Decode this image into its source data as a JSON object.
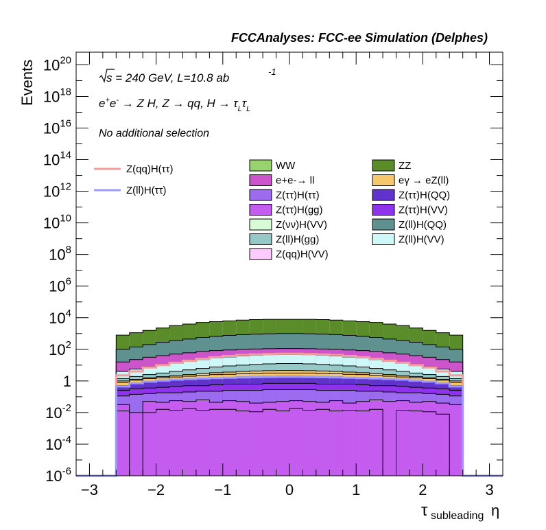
{
  "chart_data": {
    "type": "histogram-stacked",
    "title": "FCCAnalyses: FCC-ee Simulation (Delphes)",
    "xlabel": "τ_subleading η",
    "xlabel_main": "τ",
    "xlabel_sub": "subleading",
    "xlabel_tail": "η",
    "ylabel": "Events",
    "yscale": "log",
    "xlim": [
      -3.2,
      3.2
    ],
    "ylim_log10": [
      -6,
      20.8
    ],
    "annotations": {
      "sqrt_s": "s = 240 GeV, L=10.8 ab",
      "lumi_exp": "-1",
      "process": "e+e- → Z H, Z → qq, H → τLτL",
      "selection": "No additional selection"
    },
    "x_ticks": [
      {
        "v": -3,
        "label": "−3"
      },
      {
        "v": -2,
        "label": "−2"
      },
      {
        "v": -1,
        "label": "−1"
      },
      {
        "v": 0,
        "label": "0"
      },
      {
        "v": 1,
        "label": "1"
      },
      {
        "v": 2,
        "label": "2"
      },
      {
        "v": 3,
        "label": "3"
      }
    ],
    "y_ticks": [
      {
        "p": -6,
        "base": "10",
        "exp": "-6"
      },
      {
        "p": -4,
        "base": "10",
        "exp": "-4"
      },
      {
        "p": -2,
        "base": "10",
        "exp": "-2"
      },
      {
        "p": 0,
        "base": "1",
        "exp": ""
      },
      {
        "p": 2,
        "base": "10",
        "exp": "2"
      },
      {
        "p": 4,
        "base": "10",
        "exp": "4"
      },
      {
        "p": 6,
        "base": "10",
        "exp": "6"
      },
      {
        "p": 8,
        "base": "10",
        "exp": "8"
      },
      {
        "p": 10,
        "base": "10",
        "exp": "10"
      },
      {
        "p": 12,
        "base": "10",
        "exp": "12"
      },
      {
        "p": 14,
        "base": "10",
        "exp": "14"
      },
      {
        "p": 16,
        "base": "10",
        "exp": "16"
      },
      {
        "p": 18,
        "base": "10",
        "exp": "18"
      },
      {
        "p": 20,
        "base": "10",
        "exp": "20"
      }
    ],
    "bins": {
      "edges_from": -2.6,
      "edges_to": 2.6,
      "count": 26
    },
    "stack_top_log10": [
      {
        "name": "ZZ",
        "color": "#5b8c2a",
        "values": [
          2.9,
          3.05,
          3.2,
          3.35,
          3.5,
          3.6,
          3.7,
          3.75,
          3.8,
          3.85,
          3.88,
          3.9,
          3.9,
          3.9,
          3.9,
          3.88,
          3.85,
          3.8,
          3.75,
          3.7,
          3.6,
          3.5,
          3.35,
          3.2,
          3.05,
          2.9
        ]
      },
      {
        "name": "Z(ll)H(QQ)",
        "color": "#5f9191",
        "values": [
          2.0,
          2.15,
          2.3,
          2.45,
          2.55,
          2.65,
          2.75,
          2.82,
          2.88,
          2.93,
          2.96,
          2.98,
          3.0,
          3.0,
          2.98,
          2.96,
          2.93,
          2.88,
          2.82,
          2.75,
          2.65,
          2.55,
          2.45,
          2.3,
          2.15,
          2.0
        ]
      },
      {
        "name": "e+e-→ ll",
        "color": "#cc55cc",
        "values": [
          1.2,
          1.35,
          1.5,
          1.6,
          1.7,
          1.78,
          1.86,
          1.92,
          1.96,
          2.0,
          2.02,
          2.04,
          2.05,
          2.05,
          2.04,
          2.02,
          2.0,
          1.96,
          1.92,
          1.86,
          1.78,
          1.7,
          1.6,
          1.5,
          1.35,
          1.2
        ]
      },
      {
        "name": "Z(ll)H(VV)",
        "color": "#cef8f8",
        "values": [
          0.6,
          0.75,
          0.9,
          1.0,
          1.15,
          1.25,
          1.35,
          1.45,
          1.52,
          1.58,
          1.63,
          1.66,
          1.68,
          1.68,
          1.66,
          1.63,
          1.58,
          1.52,
          1.45,
          1.35,
          1.25,
          1.15,
          1.0,
          0.9,
          0.75,
          0.6
        ]
      },
      {
        "name": "Z(ll)H(gg)",
        "color": "#96c8c8",
        "values": [
          0.15,
          0.28,
          0.4,
          0.5,
          0.6,
          0.7,
          0.8,
          0.88,
          0.95,
          1.0,
          1.05,
          1.08,
          1.1,
          1.1,
          1.08,
          1.05,
          1.0,
          0.95,
          0.88,
          0.8,
          0.7,
          0.6,
          0.5,
          0.4,
          0.28,
          0.15
        ]
      },
      {
        "name": "eγ → eZ(ll)",
        "color": "#f6c76b",
        "values": [
          0.0,
          0.1,
          0.2,
          0.27,
          0.34,
          0.4,
          0.46,
          0.52,
          0.56,
          0.6,
          0.63,
          0.65,
          0.66,
          0.66,
          0.65,
          0.63,
          0.6,
          0.56,
          0.52,
          0.46,
          0.4,
          0.34,
          0.27,
          0.2,
          0.1,
          0.0
        ]
      },
      {
        "name": "Z(ττ)H(QQ)",
        "color": "#6232cc",
        "values": [
          -0.3,
          -0.2,
          -0.1,
          0.0,
          0.05,
          0.1,
          0.15,
          0.2,
          0.23,
          0.26,
          0.28,
          0.3,
          0.31,
          0.31,
          0.3,
          0.28,
          0.26,
          0.23,
          0.2,
          0.15,
          0.1,
          0.05,
          0.0,
          -0.1,
          -0.2,
          -0.3
        ]
      },
      {
        "name": "Z(ττ)H(VV)",
        "color": "#8e32ec",
        "values": [
          -0.6,
          -0.5,
          -0.45,
          -0.4,
          -0.35,
          -0.3,
          -0.3,
          -0.25,
          -0.2,
          -0.2,
          -0.2,
          -0.15,
          -0.15,
          -0.15,
          -0.15,
          -0.2,
          -0.2,
          -0.2,
          -0.25,
          -0.3,
          -0.3,
          -0.35,
          -0.4,
          -0.45,
          -0.5,
          -0.6
        ]
      },
      {
        "name": "Z(ττ)H(ττ)",
        "color": "#9b6bf0",
        "values": [
          -0.95,
          -0.85,
          -0.8,
          -0.75,
          -0.75,
          -0.7,
          -0.65,
          -0.65,
          -0.6,
          -0.6,
          -0.6,
          -0.55,
          -0.55,
          -0.55,
          -0.55,
          -0.6,
          -0.6,
          -0.6,
          -0.65,
          -0.65,
          -0.7,
          -0.75,
          -0.75,
          -0.8,
          -0.85,
          -0.95
        ]
      },
      {
        "name": "Z(ττ)H(gg)",
        "color": "#c45cf0",
        "values": [
          -1.5,
          -2.0,
          -1.3,
          -1.35,
          -1.25,
          -1.3,
          -1.2,
          -1.35,
          -1.25,
          -1.3,
          -1.4,
          -1.35,
          -1.3,
          -1.25,
          -1.3,
          -1.35,
          -1.25,
          -1.4,
          -1.3,
          -1.2,
          -1.3,
          -1.25,
          -1.35,
          -1.3,
          -1.4,
          -1.5
        ]
      }
    ],
    "thin_layers": [
      {
        "name": "Z(qq)H(VV)",
        "color": "#fdccfd",
        "values": [
          -1.9,
          -6.0,
          -2.0,
          -1.8,
          -1.85,
          -1.75,
          -1.85,
          -1.8,
          -1.8,
          -1.9,
          -1.95,
          -1.8,
          -1.9,
          -1.75,
          -1.85,
          -1.8,
          -1.9,
          -1.85,
          -1.9,
          -1.8,
          -6.0,
          -1.85,
          -1.9,
          -1.95,
          -2.1,
          -6.0
        ]
      },
      {
        "name": "Z(νν)H(VV)",
        "color": "#d6fbd6",
        "values": [
          -0.1,
          0.05,
          0.15,
          0.2,
          0.25,
          0.3,
          0.35,
          0.4,
          0.42,
          0.45,
          0.47,
          0.5,
          0.5,
          0.5,
          0.5,
          0.47,
          0.45,
          0.42,
          0.4,
          0.35,
          0.3,
          0.25,
          0.2,
          0.15,
          0.05,
          -0.1
        ]
      }
    ],
    "overlay_lines": [
      {
        "name": "Z(qq)H(ττ)",
        "color": "#f79c9c",
        "values": [
          0.35,
          0.6,
          0.85,
          1.0,
          1.15,
          1.28,
          1.4,
          1.5,
          1.58,
          1.64,
          1.68,
          1.7,
          1.72,
          1.72,
          1.7,
          1.68,
          1.64,
          1.58,
          1.5,
          1.4,
          1.28,
          1.15,
          1.0,
          0.85,
          0.6,
          0.35
        ]
      },
      {
        "name": "Z(ll)H(ττ)",
        "color": "#9a9aff",
        "values": [
          -0.35,
          -0.15,
          -0.05,
          0.02,
          0.08,
          0.12,
          0.15,
          0.18,
          0.2,
          0.22,
          0.24,
          0.25,
          0.26,
          0.26,
          0.25,
          0.24,
          0.22,
          0.2,
          0.18,
          0.15,
          0.12,
          0.08,
          0.02,
          -0.05,
          -0.15,
          -0.35
        ]
      }
    ],
    "legend_lines": [
      {
        "label": "Z(qq)H(ττ)",
        "color": "#f79c9c"
      },
      {
        "label": "Z(ll)H(ττ)",
        "color": "#9a9aff"
      }
    ],
    "legend_boxes_col1": [
      {
        "label": "WW",
        "color": "#99d36f"
      },
      {
        "label": "e+e-→ ll",
        "color": "#cc55cc"
      },
      {
        "label": "Z(ττ)H(ττ)",
        "color": "#9b6bf0"
      },
      {
        "label": "Z(ττ)H(gg)",
        "color": "#c45cf0"
      },
      {
        "label": "Z(νν)H(VV)",
        "color": "#d6fbd6"
      },
      {
        "label": "Z(ll)H(gg)",
        "color": "#96c8c8"
      },
      {
        "label": "Z(qq)H(VV)",
        "color": "#fdccfd"
      }
    ],
    "legend_boxes_col2": [
      {
        "label": "ZZ",
        "color": "#5b8c2a"
      },
      {
        "label": "eγ → eZ(ll)",
        "color": "#f6c76b"
      },
      {
        "label": "Z(ττ)H(QQ)",
        "color": "#6232cc"
      },
      {
        "label": "Z(ττ)H(VV)",
        "color": "#8e32ec"
      },
      {
        "label": "Z(ll)H(QQ)",
        "color": "#5f9191"
      },
      {
        "label": "Z(ll)H(VV)",
        "color": "#cef8f8"
      }
    ]
  }
}
